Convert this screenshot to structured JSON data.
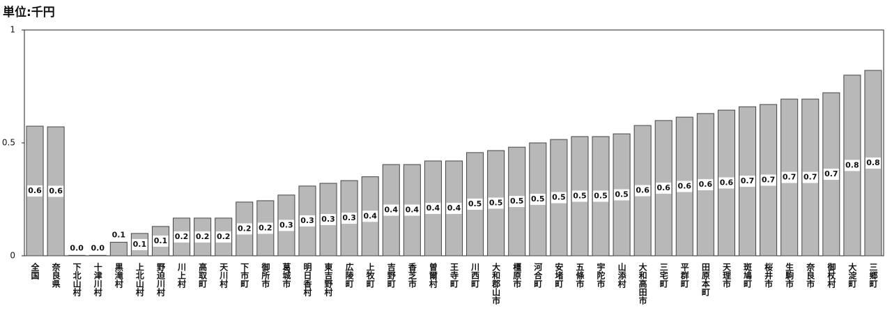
{
  "chart_data": {
    "type": "bar",
    "unit_label": "単位:千円",
    "categories": [
      "全国",
      "奈良県",
      "下北山村",
      "十津川村",
      "黒滝村",
      "上北山村",
      "野迫川村",
      "川上村",
      "高取町",
      "天川村",
      "下市町",
      "御所市",
      "葛城市",
      "明日香村",
      "東吉野村",
      "広陵町",
      "上牧町",
      "吉野町",
      "香芝市",
      "曽爾村",
      "王寺町",
      "川西町",
      "大和郡山市",
      "橿原市",
      "河合町",
      "安堵町",
      "五條市",
      "宇陀市",
      "山添村",
      "大和高田市",
      "三宅町",
      "平群町",
      "田原本町",
      "天理市",
      "斑鳩町",
      "桜井市",
      "生駒市",
      "奈良市",
      "御杖村",
      "大淀町",
      "三郷町"
    ],
    "values": [
      0.574,
      0.571,
      0.002,
      0.002,
      0.06,
      0.099,
      0.13,
      0.167,
      0.167,
      0.167,
      0.238,
      0.244,
      0.269,
      0.309,
      0.321,
      0.333,
      0.35,
      0.404,
      0.404,
      0.42,
      0.42,
      0.457,
      0.466,
      0.481,
      0.5,
      0.515,
      0.528,
      0.528,
      0.54,
      0.577,
      0.599,
      0.614,
      0.63,
      0.645,
      0.66,
      0.67,
      0.694,
      0.694,
      0.722,
      0.8,
      0.821
    ],
    "value_labels": [
      "0.6",
      "0.6",
      "0.0",
      "0.0",
      "0.1",
      "0.1",
      "0.1",
      "0.2",
      "0.2",
      "0.2",
      "0.2",
      "0.2",
      "0.3",
      "0.3",
      "0.3",
      "0.3",
      "0.4",
      "0.4",
      "0.4",
      "0.4",
      "0.4",
      "0.5",
      "0.5",
      "0.5",
      "0.5",
      "0.5",
      "0.5",
      "0.5",
      "0.5",
      "0.6",
      "0.6",
      "0.6",
      "0.6",
      "0.6",
      "0.7",
      "0.7",
      "0.7",
      "0.7",
      "0.7",
      "0.8",
      "0.8"
    ],
    "color": "#b8b8b8",
    "ylim": [
      0,
      1
    ],
    "yticks": [
      0,
      0.5,
      1
    ],
    "grid": false
  }
}
